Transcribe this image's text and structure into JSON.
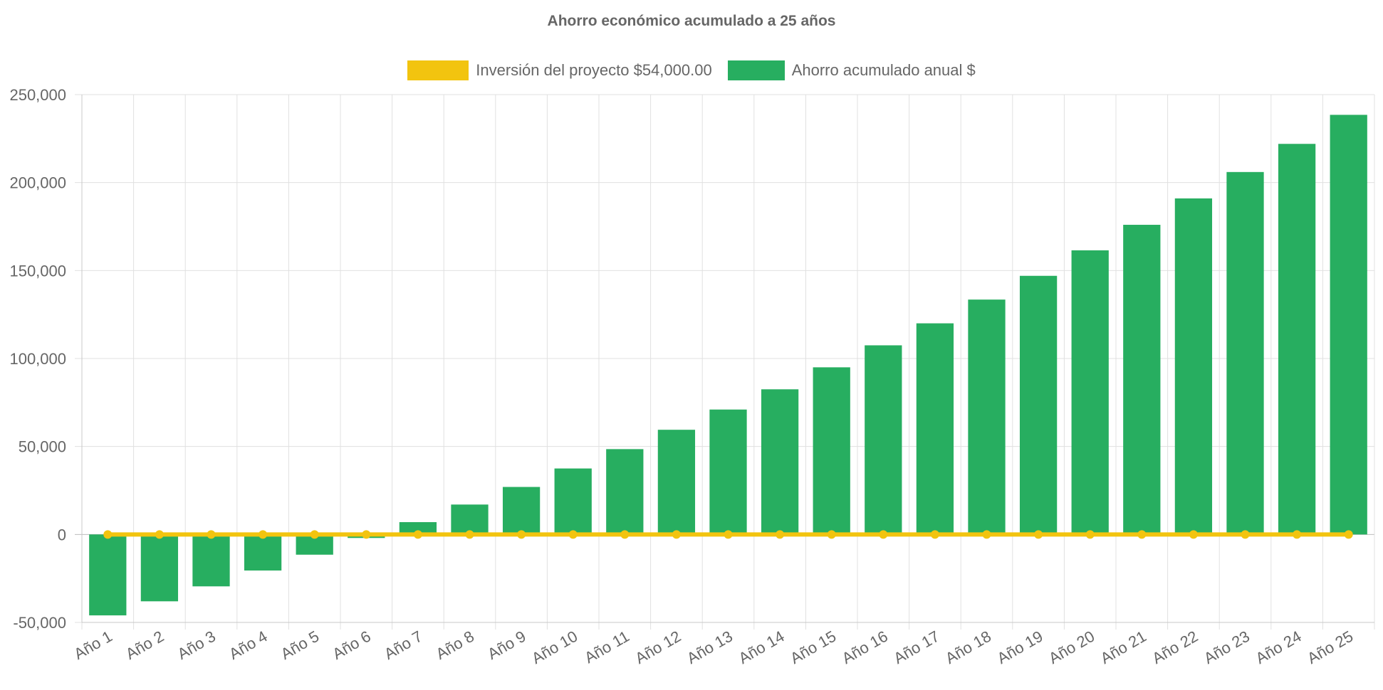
{
  "chart_data": {
    "type": "bar",
    "title": "Ahorro económico acumulado a 25 años",
    "categories": [
      "Año 1",
      "Año 2",
      "Año 3",
      "Año 4",
      "Año 5",
      "Año 6",
      "Año 7",
      "Año 8",
      "Año 9",
      "Año 10",
      "Año 11",
      "Año 12",
      "Año 13",
      "Año 14",
      "Año 15",
      "Año 16",
      "Año 17",
      "Año 18",
      "Año 19",
      "Año 20",
      "Año 21",
      "Año 22",
      "Año 23",
      "Año 24",
      "Año 25"
    ],
    "series": [
      {
        "name": "Inversión del proyecto $54,000.00",
        "render": "line",
        "color": "#f2c40f",
        "values": [
          0,
          0,
          0,
          0,
          0,
          0,
          0,
          0,
          0,
          0,
          0,
          0,
          0,
          0,
          0,
          0,
          0,
          0,
          0,
          0,
          0,
          0,
          0,
          0,
          0
        ]
      },
      {
        "name": "Ahorro acumulado anual $",
        "render": "bar",
        "color": "#27ae60",
        "values": [
          -46000,
          -38000,
          -29500,
          -20500,
          -11500,
          -2000,
          7000,
          17000,
          27000,
          37500,
          48500,
          59500,
          71000,
          82500,
          95000,
          107500,
          120000,
          133500,
          147000,
          161500,
          176000,
          191000,
          206000,
          222000,
          238500
        ]
      }
    ],
    "ylim": [
      -50000,
      250000
    ],
    "yticks": [
      "250,000",
      "200,000",
      "150,000",
      "100,000",
      "50,000",
      "0",
      "-50,000"
    ],
    "ytick_values": [
      250000,
      200000,
      150000,
      100000,
      50000,
      0,
      -50000
    ],
    "grid": true,
    "legend_position": "top"
  }
}
